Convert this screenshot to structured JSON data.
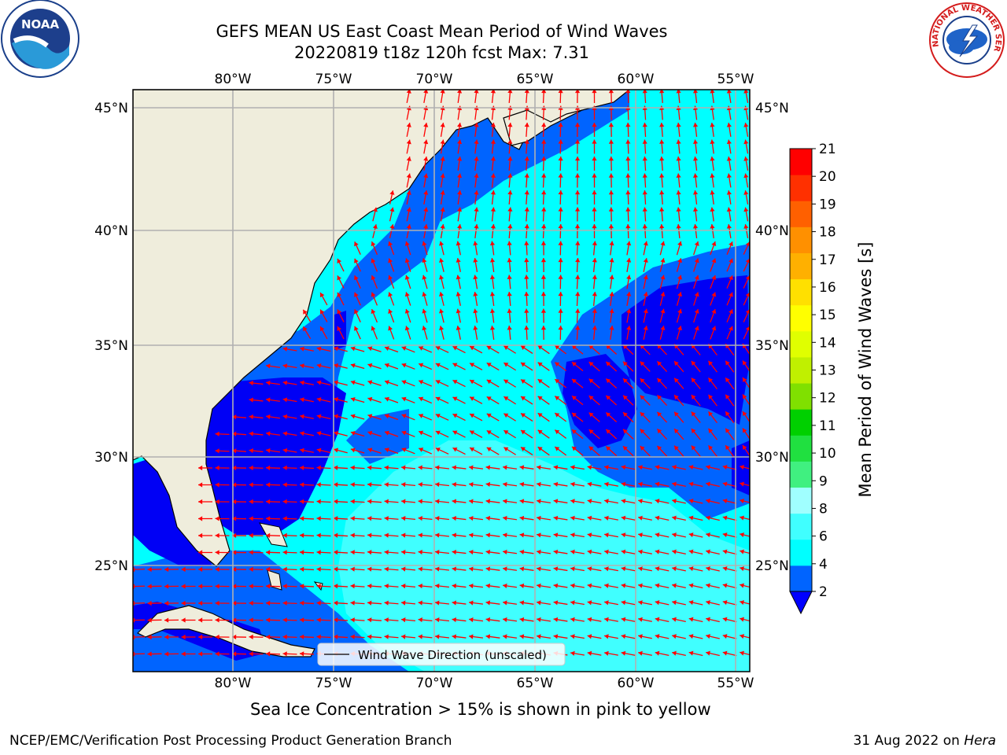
{
  "title": {
    "line1": "GEFS MEAN US East Coast Mean Period of Wind Waves",
    "line2": "20220819 t18z 120h fcst   Max: 7.31"
  },
  "map": {
    "lon_labels": [
      "80°W",
      "75°W",
      "70°W",
      "65°W",
      "60°W",
      "55°W"
    ],
    "lat_labels": [
      "45°N",
      "40°N",
      "35°N",
      "30°N",
      "25°N"
    ],
    "legend_label": "Wind Wave Direction (unscaled)",
    "arrow_color": "#ff0000",
    "land_color": "#efeddc",
    "grid_color": "#b0b0b0"
  },
  "colorbar": {
    "label": "Mean Period of Wind Waves [s]",
    "ticks": [
      "21",
      "20",
      "19",
      "18",
      "17",
      "16",
      "15",
      "14",
      "13",
      "12",
      "11",
      "10",
      "9",
      "8",
      "6",
      "4",
      "2"
    ],
    "levels": [
      2,
      4,
      6,
      8,
      9,
      10,
      11,
      12,
      13,
      14,
      15,
      16,
      17,
      18,
      19,
      20,
      21
    ],
    "colors": [
      "#0064ff",
      "#00ffff",
      "#40ffff",
      "#a0ffff",
      "#40f080",
      "#20e040",
      "#00d000",
      "#80e000",
      "#c0f000",
      "#e0ff00",
      "#ffff00",
      "#ffe000",
      "#ffb000",
      "#ff9000",
      "#ff6000",
      "#ff3000",
      "#ff0000"
    ],
    "under_color": "#0000ff"
  },
  "logos": {
    "noaa_text": "NOAA",
    "nws_text": "NATIONAL WEATHER SERVICE"
  },
  "footer": {
    "sea_ice_note": "Sea Ice Concentration > 15% is shown in pink to yellow",
    "left": "NCEP/EMC/Verification Post Processing Product Generation Branch",
    "right_date": "31 Aug 2022 on ",
    "right_host": "Hera"
  }
}
